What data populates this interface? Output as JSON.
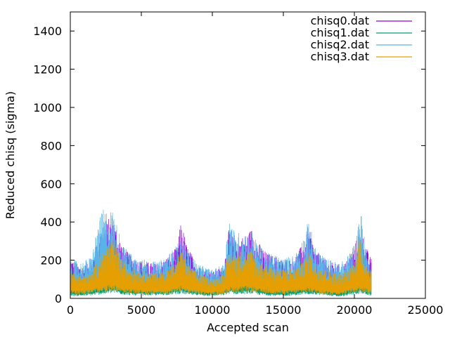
{
  "chart_data": {
    "type": "line",
    "xlabel": "Accepted scan",
    "ylabel": "Reduced chisq (sigma)",
    "xlim": [
      0,
      25000
    ],
    "ylim": [
      0,
      1500
    ],
    "xticks": [
      0,
      5000,
      10000,
      15000,
      20000,
      25000
    ],
    "yticks": [
      0,
      200,
      400,
      600,
      800,
      1000,
      1200,
      1400
    ],
    "grid": false,
    "legend_position": "top-right",
    "x_end": 21200,
    "series": [
      {
        "name": "chisq0.dat",
        "color": "#9400d3",
        "envelope": {
          "x": [
            0,
            300,
            800,
            1500,
            1900,
            2300,
            2700,
            3000,
            3300,
            3800,
            4500,
            5500,
            6200,
            7000,
            7500,
            7800,
            8200,
            9000,
            10000,
            10800,
            11200,
            11600,
            12000,
            12400,
            12800,
            13200,
            13800,
            14400,
            15000,
            15800,
            16400,
            16800,
            17200,
            18000,
            18800,
            19400,
            19800,
            20100,
            20400,
            20700,
            21000,
            21200
          ],
          "high": [
            220,
            190,
            170,
            190,
            300,
            360,
            420,
            440,
            350,
            260,
            210,
            190,
            180,
            230,
            270,
            410,
            280,
            170,
            140,
            170,
            380,
            300,
            320,
            340,
            370,
            300,
            240,
            220,
            200,
            220,
            290,
            370,
            260,
            200,
            180,
            190,
            250,
            300,
            340,
            320,
            230,
            210
          ],
          "low": [
            40,
            35,
            35,
            40,
            50,
            60,
            70,
            75,
            65,
            55,
            45,
            40,
            40,
            45,
            55,
            70,
            50,
            40,
            30,
            40,
            70,
            60,
            65,
            65,
            70,
            55,
            45,
            40,
            40,
            45,
            50,
            65,
            50,
            40,
            35,
            40,
            50,
            60,
            70,
            60,
            45,
            40
          ]
        }
      },
      {
        "name": "chisq1.dat",
        "color": "#009e73",
        "envelope": {
          "x": [
            0,
            300,
            800,
            1500,
            1900,
            2300,
            2700,
            3000,
            3300,
            3800,
            4500,
            5500,
            6200,
            7000,
            7500,
            7800,
            8200,
            9000,
            10000,
            10800,
            11200,
            11600,
            12000,
            12400,
            12800,
            13200,
            13800,
            14400,
            15000,
            15800,
            16400,
            16800,
            17200,
            18000,
            18800,
            19400,
            19800,
            20100,
            20400,
            20700,
            21000,
            21200
          ],
          "high": [
            150,
            120,
            110,
            120,
            170,
            200,
            230,
            240,
            200,
            160,
            130,
            120,
            110,
            130,
            150,
            200,
            150,
            110,
            90,
            110,
            210,
            180,
            190,
            200,
            210,
            170,
            140,
            130,
            120,
            130,
            160,
            200,
            150,
            120,
            110,
            120,
            140,
            170,
            190,
            170,
            130,
            120
          ],
          "low": [
            25,
            20,
            20,
            25,
            30,
            35,
            40,
            45,
            40,
            30,
            25,
            25,
            25,
            30,
            35,
            40,
            30,
            25,
            20,
            25,
            40,
            35,
            35,
            35,
            40,
            30,
            25,
            20,
            20,
            25,
            30,
            35,
            30,
            25,
            15,
            20,
            30,
            35,
            40,
            35,
            25,
            20
          ]
        }
      },
      {
        "name": "chisq2.dat",
        "color": "#56b4e9",
        "envelope": {
          "x": [
            0,
            300,
            800,
            1500,
            1900,
            2300,
            2700,
            3000,
            3300,
            3800,
            4500,
            5500,
            6200,
            7000,
            7500,
            7800,
            8200,
            9000,
            10000,
            10800,
            11200,
            11600,
            12000,
            12400,
            12800,
            13200,
            13800,
            14400,
            15000,
            15800,
            16400,
            16800,
            17200,
            18000,
            18800,
            19400,
            19800,
            20100,
            20400,
            20700,
            21000,
            21200
          ],
          "high": [
            210,
            200,
            190,
            220,
            380,
            470,
            460,
            470,
            380,
            270,
            220,
            200,
            190,
            240,
            280,
            330,
            260,
            180,
            150,
            180,
            440,
            340,
            350,
            340,
            350,
            290,
            240,
            230,
            210,
            230,
            320,
            420,
            270,
            210,
            190,
            200,
            270,
            300,
            500,
            320,
            200,
            180
          ],
          "low": [
            50,
            45,
            45,
            50,
            60,
            70,
            80,
            85,
            75,
            65,
            55,
            50,
            50,
            55,
            65,
            80,
            60,
            50,
            40,
            50,
            80,
            70,
            75,
            75,
            80,
            65,
            55,
            50,
            50,
            55,
            60,
            75,
            60,
            50,
            45,
            50,
            60,
            70,
            80,
            70,
            55,
            50
          ]
        }
      },
      {
        "name": "chisq3.dat",
        "color": "#e69f00",
        "envelope": {
          "x": [
            0,
            300,
            800,
            1500,
            1900,
            2300,
            2700,
            3000,
            3300,
            3800,
            4500,
            5500,
            6200,
            7000,
            7500,
            7800,
            8200,
            9000,
            10000,
            10800,
            11200,
            11600,
            12000,
            12400,
            12800,
            13200,
            13800,
            14400,
            15000,
            15800,
            16400,
            16800,
            17200,
            18000,
            18800,
            19400,
            19800,
            20100,
            20400,
            20700,
            21000,
            21200
          ],
          "high": [
            140,
            130,
            120,
            130,
            200,
            250,
            290,
            300,
            250,
            190,
            150,
            140,
            130,
            160,
            190,
            260,
            180,
            130,
            100,
            130,
            260,
            230,
            250,
            250,
            250,
            200,
            170,
            160,
            150,
            160,
            200,
            250,
            180,
            150,
            130,
            140,
            170,
            220,
            330,
            220,
            160,
            140
          ],
          "low": [
            40,
            35,
            35,
            40,
            50,
            55,
            60,
            65,
            55,
            45,
            40,
            35,
            35,
            40,
            45,
            55,
            45,
            35,
            30,
            35,
            55,
            50,
            55,
            55,
            55,
            45,
            40,
            35,
            35,
            40,
            45,
            55,
            45,
            35,
            30,
            35,
            45,
            50,
            60,
            50,
            40,
            35
          ]
        }
      }
    ]
  }
}
